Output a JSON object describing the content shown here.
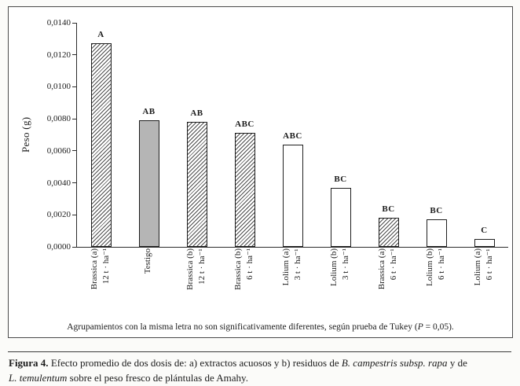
{
  "figure": {
    "note_segments": [
      {
        "text": "Agrupamientos con la misma letra no son significativamente diferentes, según prueba de Tukey (",
        "style": "normal"
      },
      {
        "text": "P",
        "style": "italic"
      },
      {
        "text": " = 0,05).",
        "style": "normal"
      }
    ],
    "caption_segments": [
      {
        "text": "Figura 4.",
        "style": "bold"
      },
      {
        "text": " Efecto promedio de dos dosis de: a) extractos acuosos y b) residuos de ",
        "style": "normal"
      },
      {
        "text": "B. campestris subsp. rapa",
        "style": "italic"
      },
      {
        "text": " y de",
        "style": "normal",
        "newline_after": true
      },
      {
        "text": "L. temulentum",
        "style": "italic"
      },
      {
        "text": " sobre el peso fresco de plántulas de Amahy.",
        "style": "normal"
      }
    ]
  },
  "chart_data": {
    "type": "bar",
    "title": "",
    "xlabel": "",
    "ylabel": "Peso (g)",
    "ylim": [
      0,
      0.014
    ],
    "grid": false,
    "legend": null,
    "decimal_style": "comma",
    "ytick_labels": [
      "0,0000",
      "0,0020",
      "0,0040",
      "0,0060",
      "0,0080",
      "0,0100",
      "0,0120",
      "0,0140"
    ],
    "bars": [
      {
        "category_line1": "Brassica (a)",
        "category_line2": "12 t · ha⁻¹",
        "value": 0.0127,
        "tukey_group": "A",
        "fill": "hatched"
      },
      {
        "category_line1": "Testigo",
        "category_line2": "",
        "value": 0.0079,
        "tukey_group": "AB",
        "fill": "gray"
      },
      {
        "category_line1": "Brassica (b)",
        "category_line2": "12 t · ha⁻¹",
        "value": 0.0078,
        "tukey_group": "AB",
        "fill": "hatched"
      },
      {
        "category_line1": "Brassica (b)",
        "category_line2": "6 t · ha⁻¹",
        "value": 0.0071,
        "tukey_group": "ABC",
        "fill": "hatched"
      },
      {
        "category_line1": "Lolium (a)",
        "category_line2": "3 t · ha⁻¹",
        "value": 0.0064,
        "tukey_group": "ABC",
        "fill": "white"
      },
      {
        "category_line1": "Lolium (b)",
        "category_line2": "3 t · ha⁻¹",
        "value": 0.0037,
        "tukey_group": "BC",
        "fill": "white"
      },
      {
        "category_line1": "Brassica (a)",
        "category_line2": "6 t · ha⁻¹",
        "value": 0.0018,
        "tukey_group": "BC",
        "fill": "hatched"
      },
      {
        "category_line1": "Lolium (b)",
        "category_line2": "6 t · ha⁻¹",
        "value": 0.0017,
        "tukey_group": "BC",
        "fill": "white"
      },
      {
        "category_line1": "Lolium (a)",
        "category_line2": "6 t · ha⁻¹",
        "value": 0.0005,
        "tukey_group": "C",
        "fill": "white"
      }
    ],
    "colors": {
      "gray_fill": "#b5b5b5",
      "hatch_line": "#4d4d4d",
      "bar_border": "#1f1f1f",
      "axis": "#2b2b2b"
    }
  }
}
